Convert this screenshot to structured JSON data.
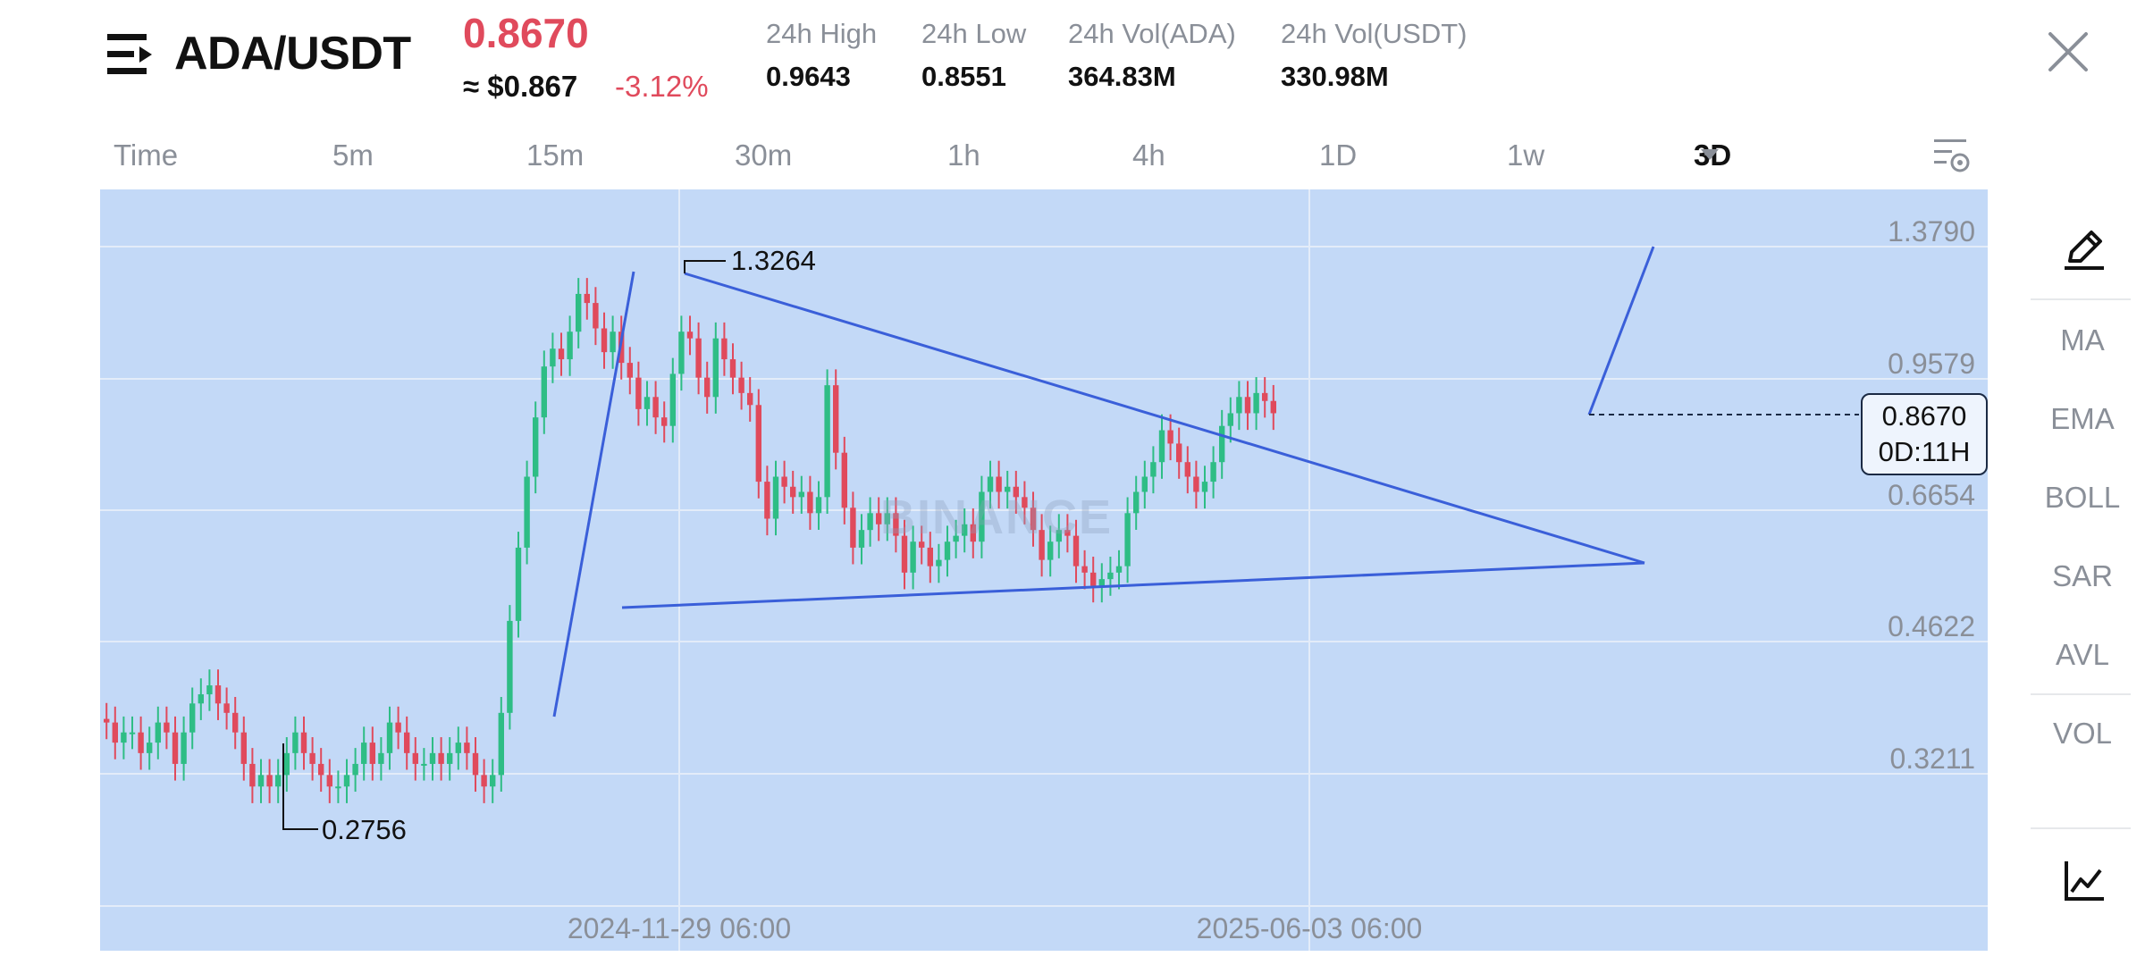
{
  "header": {
    "pair": "ADA/USDT",
    "price": "0.8670",
    "approx": "≈ $0.867",
    "change": "-3.12%",
    "stats": [
      {
        "label": "24h High",
        "value": "0.9643"
      },
      {
        "label": "24h Low",
        "value": "0.8551"
      },
      {
        "label": "24h Vol(ADA)",
        "value": "364.83M"
      },
      {
        "label": "24h Vol(USDT)",
        "value": "330.98M"
      }
    ]
  },
  "tabs": [
    "Time",
    "5m",
    "15m",
    "30m",
    "1h",
    "4h",
    "1D",
    "1w",
    "3D"
  ],
  "selected_tab": "3D",
  "chart": {
    "y_ticks": [
      "1.3790",
      "0.9579",
      "0.6654",
      "0.4622",
      "0.3211"
    ],
    "x_ticks": [
      "2024-11-29 06:00",
      "2025-06-03 06:00"
    ],
    "high_marker": "1.3264",
    "low_marker": "0.2756",
    "last_price": "0.8670",
    "countdown": "0D:11H",
    "watermark": "BINANCE"
  },
  "tools": [
    "MA",
    "EMA",
    "BOLL",
    "SAR",
    "AVL",
    "VOL"
  ],
  "icons": {
    "menu": "menu-lines-icon",
    "close": "close-icon",
    "settings": "chart-settings-icon",
    "draw": "pencil-icon",
    "chart_type": "line-chart-icon"
  },
  "colors": {
    "down": "#e04a5c",
    "up": "#2ebd85",
    "trendline": "#3a5fd9",
    "chart_bg": "#c3d9f7"
  },
  "chart_data": {
    "type": "candlestick",
    "interval": "3D",
    "y_scale": "log",
    "y_ticks": [
      1.379,
      0.9579,
      0.6654,
      0.4622,
      0.3211
    ],
    "ylim": [
      0.25,
      1.6
    ],
    "x_labels": [
      "2024-11-29 06:00",
      "2025-06-03 06:00"
    ],
    "series": [
      {
        "close": [
          0.37,
          0.35,
          0.36,
          0.36,
          0.34,
          0.35,
          0.37,
          0.36,
          0.33,
          0.36,
          0.39,
          0.4,
          0.41,
          0.39,
          0.38,
          0.36,
          0.33,
          0.31,
          0.32,
          0.31,
          0.32,
          0.34,
          0.36,
          0.34,
          0.33,
          0.32,
          0.31,
          0.31,
          0.32,
          0.33,
          0.35,
          0.33,
          0.34,
          0.37,
          0.36,
          0.34,
          0.33,
          0.33,
          0.34,
          0.33,
          0.34,
          0.35,
          0.34,
          0.32,
          0.31,
          0.32,
          0.38,
          0.49,
          0.6,
          0.73,
          0.86,
          0.99,
          1.04,
          1.01,
          1.09,
          1.21,
          1.18,
          1.1,
          1.03,
          1.09,
          1.0,
          0.96,
          0.88,
          0.91,
          0.86,
          0.84,
          0.97,
          1.09,
          1.07,
          0.96,
          0.91,
          1.07,
          1.01,
          0.96,
          0.92,
          0.89,
          0.72,
          0.65,
          0.73,
          0.71,
          0.69,
          0.7,
          0.66,
          0.69,
          0.94,
          0.78,
          0.67,
          0.6,
          0.63,
          0.66,
          0.64,
          0.66,
          0.62,
          0.56,
          0.61,
          0.6,
          0.57,
          0.58,
          0.61,
          0.62,
          0.64,
          0.61,
          0.7,
          0.73,
          0.7,
          0.71,
          0.69,
          0.67,
          0.63,
          0.58,
          0.61,
          0.63,
          0.62,
          0.57,
          0.56,
          0.54,
          0.55,
          0.56,
          0.57,
          0.66,
          0.7,
          0.73,
          0.76,
          0.83,
          0.8,
          0.76,
          0.73,
          0.7,
          0.72,
          0.76,
          0.84,
          0.87,
          0.91,
          0.87,
          0.92,
          0.9,
          0.87
        ]
      }
    ],
    "annotations": {
      "high": 1.3264,
      "low": 0.2756,
      "last": 0.867
    }
  }
}
